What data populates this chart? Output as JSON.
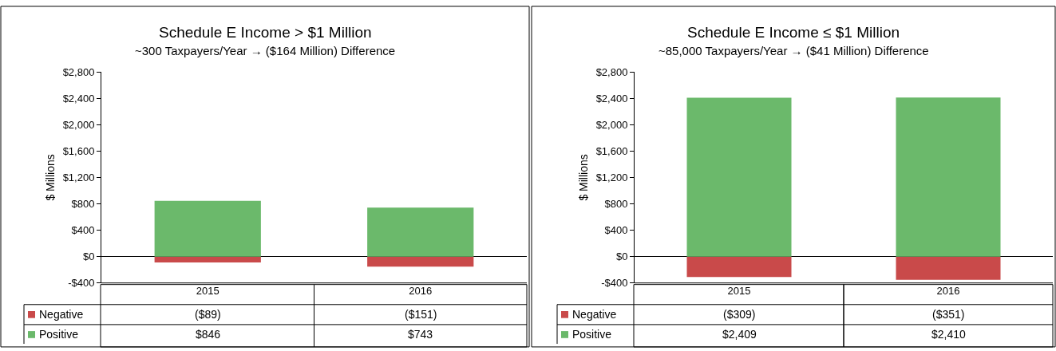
{
  "chart_data": [
    {
      "type": "bar",
      "title": "Schedule E Income > $1 Million",
      "subtitle": "~300 Taxpayers/Year → ($164 Million) Difference",
      "ylabel": "$ Millions",
      "categories": [
        "2015",
        "2016"
      ],
      "stacked": true,
      "legend": "bottom left",
      "series": [
        {
          "name": "Negative",
          "color": "#c94a4a",
          "values": [
            -89,
            -151
          ],
          "value_labels": [
            "($89)",
            "($151)"
          ]
        },
        {
          "name": "Positive",
          "color": "#6bb96b",
          "values": [
            846,
            743
          ],
          "value_labels": [
            "$846",
            "$743"
          ]
        }
      ],
      "ylim": [
        -400,
        2800
      ],
      "yticks": [
        {
          "value": -400,
          "label": "-$400"
        },
        {
          "value": 0,
          "label": "$0"
        },
        {
          "value": 400,
          "label": "$400"
        },
        {
          "value": 800,
          "label": "$800"
        },
        {
          "value": 1200,
          "label": "$1,200"
        },
        {
          "value": 1600,
          "label": "$1,600"
        },
        {
          "value": 2000,
          "label": "$2,000"
        },
        {
          "value": 2400,
          "label": "$2,400"
        },
        {
          "value": 2800,
          "label": "$2,800"
        }
      ]
    },
    {
      "type": "bar",
      "title": "Schedule E Income ≤ $1 Million",
      "subtitle": "~85,000 Taxpayers/Year → ($41 Million) Difference",
      "ylabel": "$ Millions",
      "categories": [
        "2015",
        "2016"
      ],
      "stacked": true,
      "legend": "bottom left",
      "series": [
        {
          "name": "Negative",
          "color": "#c94a4a",
          "values": [
            -309,
            -351
          ],
          "value_labels": [
            "($309)",
            "($351)"
          ]
        },
        {
          "name": "Positive",
          "color": "#6bb96b",
          "values": [
            2409,
            2410
          ],
          "value_labels": [
            "$2,409",
            "$2,410"
          ]
        }
      ],
      "ylim": [
        -400,
        2800
      ],
      "yticks": [
        {
          "value": -400,
          "label": "-$400"
        },
        {
          "value": 0,
          "label": "$0"
        },
        {
          "value": 400,
          "label": "$400"
        },
        {
          "value": 800,
          "label": "$800"
        },
        {
          "value": 1200,
          "label": "$1,200"
        },
        {
          "value": 1600,
          "label": "$1,600"
        },
        {
          "value": 2000,
          "label": "$2,000"
        },
        {
          "value": 2400,
          "label": "$2,400"
        },
        {
          "value": 2800,
          "label": "$2,800"
        }
      ]
    }
  ]
}
